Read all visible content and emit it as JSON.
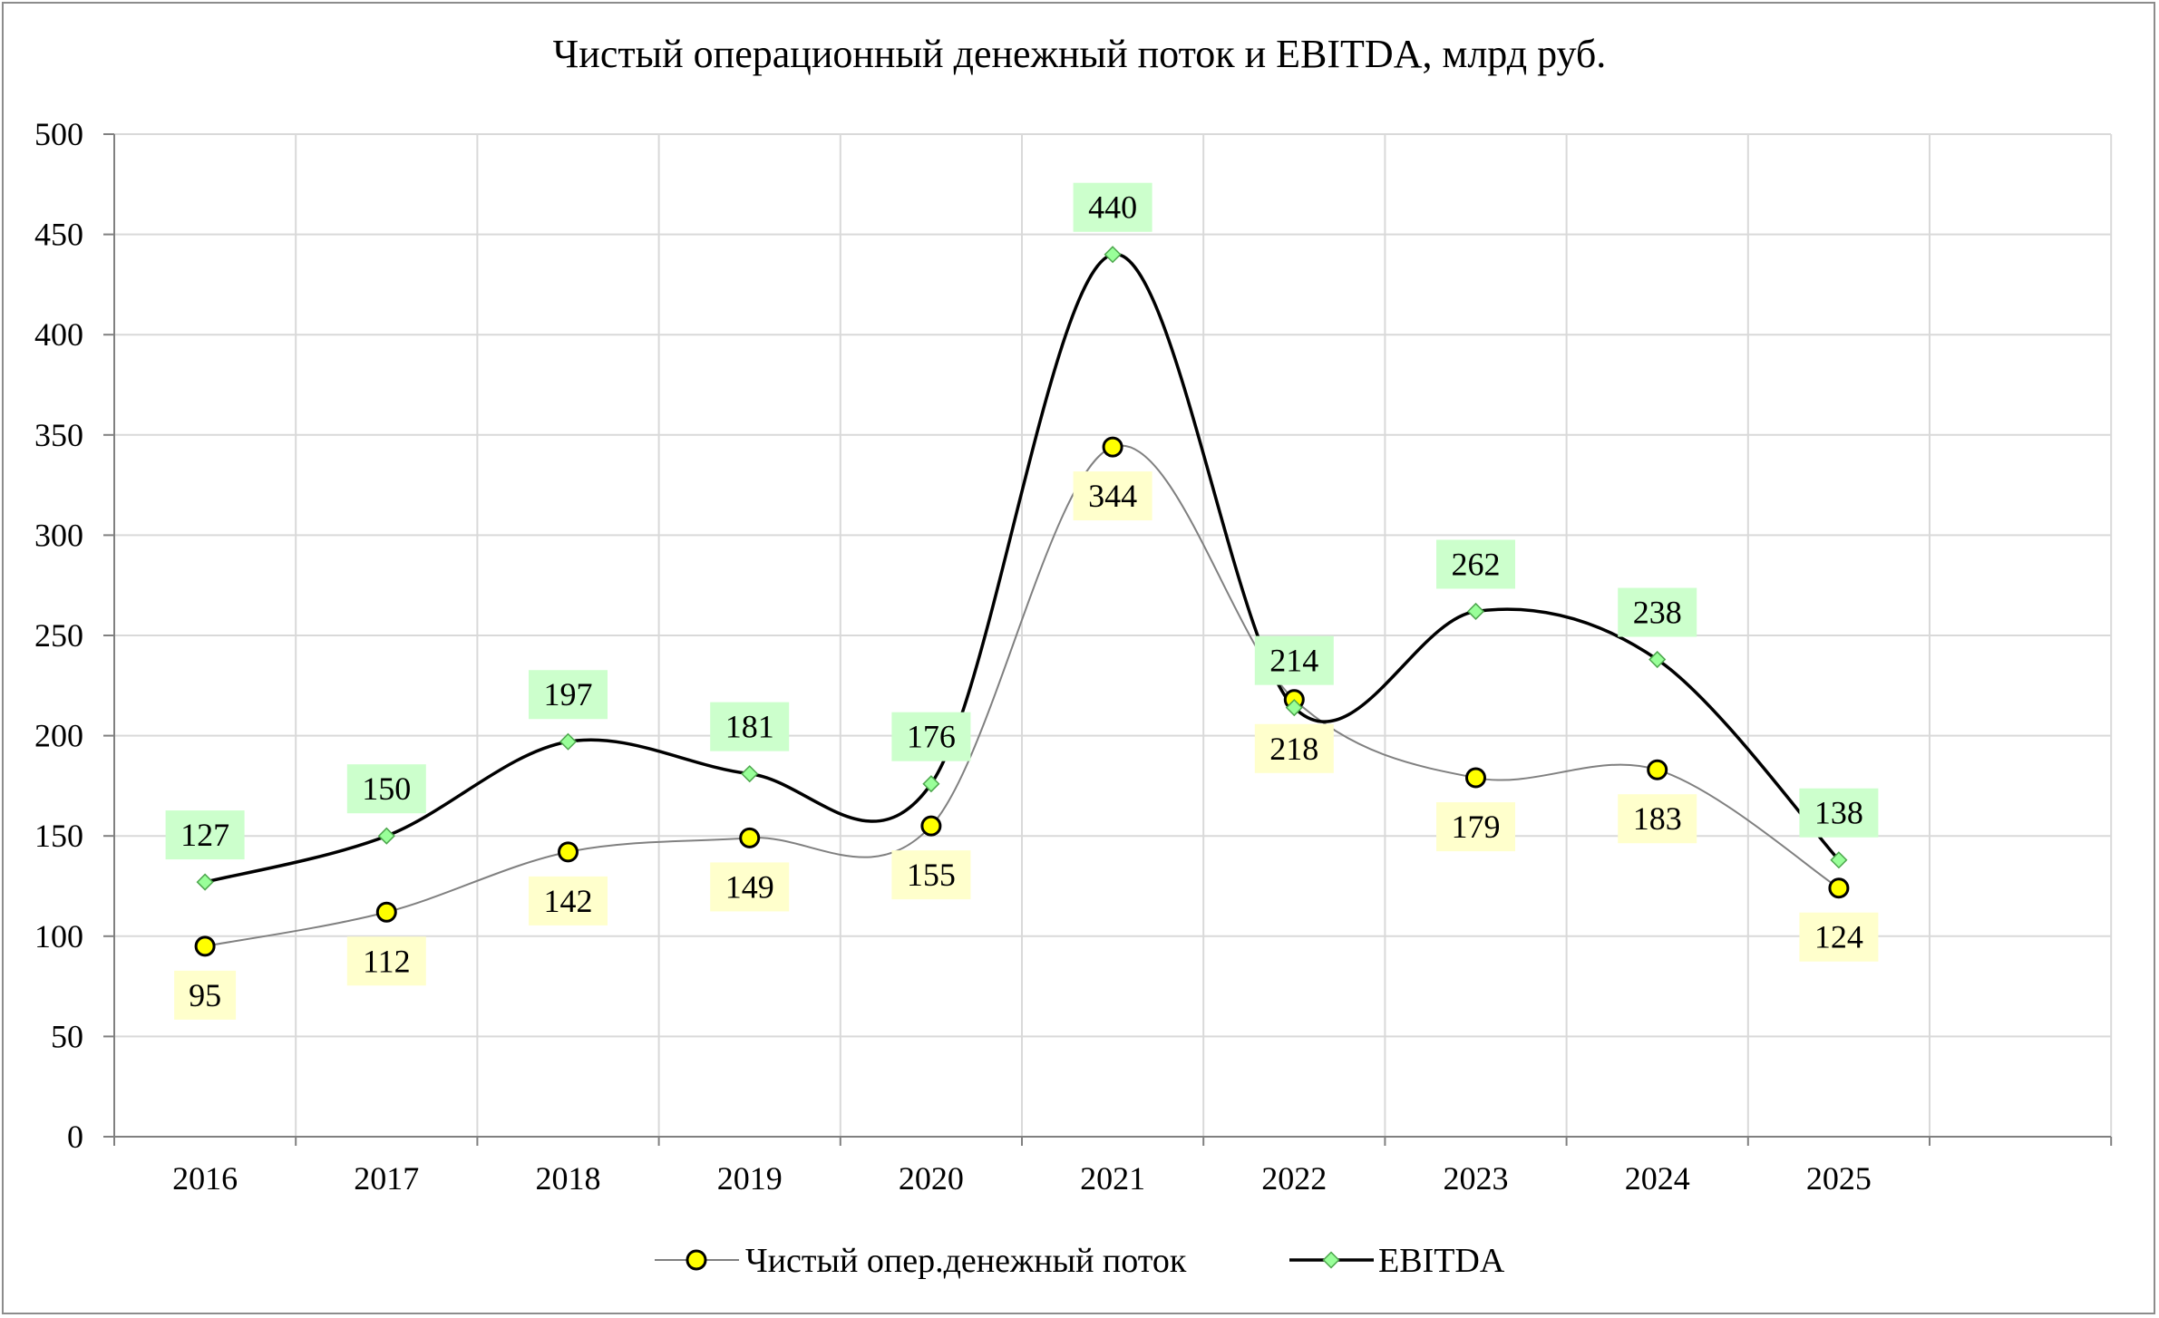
{
  "chart_data": {
    "type": "line",
    "title": "Чистый операционный денежный поток и EBITDA, млрд руб.",
    "categories": [
      "2016",
      "2017",
      "2018",
      "2019",
      "2020",
      "2021",
      "2022",
      "2023",
      "2024",
      "2025"
    ],
    "ylim": [
      0,
      500
    ],
    "yticks": [
      0,
      50,
      100,
      150,
      200,
      250,
      300,
      350,
      400,
      450,
      500
    ],
    "grid": true,
    "legend_position": "bottom",
    "series": [
      {
        "name": "Чистый опер.денежный поток",
        "values": [
          95,
          112,
          142,
          149,
          155,
          344,
          218,
          179,
          183,
          124
        ],
        "color": "#ffff00",
        "label_bg": "#ffffcc",
        "line_color": "#808080",
        "marker": "circle"
      },
      {
        "name": "EBITDA",
        "values": [
          127,
          150,
          197,
          181,
          176,
          440,
          214,
          262,
          238,
          138
        ],
        "color": "#99ff99",
        "label_bg": "#ccffcc",
        "line_color": "#000000",
        "marker": "diamond"
      }
    ]
  }
}
